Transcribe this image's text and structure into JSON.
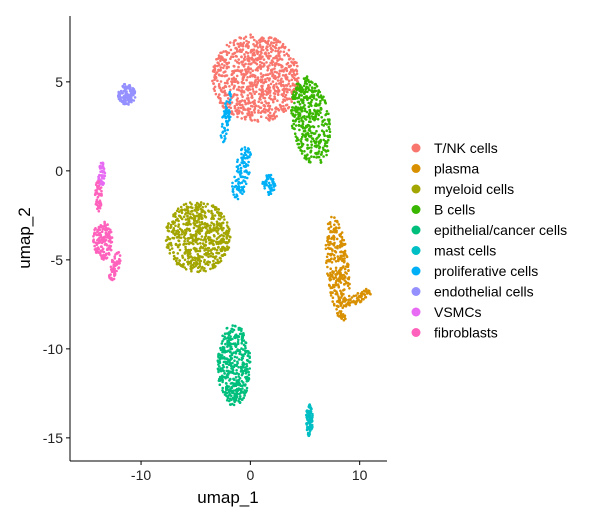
{
  "chart_data": {
    "type": "scatter",
    "title": "",
    "xlabel": "umap_1",
    "ylabel": "umap_2",
    "xlim": [
      -16.5,
      12.5
    ],
    "ylim": [
      -16.3,
      8.7
    ],
    "x_ticks": [
      {
        "value": -10,
        "label": "-10"
      },
      {
        "value": 0,
        "label": "0"
      },
      {
        "value": 10,
        "label": "10"
      }
    ],
    "y_ticks": [
      {
        "value": 5,
        "label": "5"
      },
      {
        "value": 0,
        "label": "0"
      },
      {
        "value": -5,
        "label": "-5"
      },
      {
        "value": -10,
        "label": "-10"
      },
      {
        "value": -15,
        "label": "-15"
      }
    ],
    "grid": false,
    "legend_position": "right",
    "series": [
      {
        "name": "T/NK cells",
        "color": "#F8766D",
        "clusters": [
          {
            "cx": 0.5,
            "cy": 5.2,
            "rx": 4.0,
            "ry": 2.5,
            "n": 900
          }
        ]
      },
      {
        "name": "plasma",
        "color": "#D89000",
        "clusters": [
          {
            "cx": 8.0,
            "cy": -5.5,
            "rx": 1.0,
            "ry": 3.0,
            "n": 320,
            "tilt": 10
          },
          {
            "cx": 10.0,
            "cy": -7.1,
            "rx": 1.3,
            "ry": 0.3,
            "n": 60,
            "tilt": 20
          }
        ]
      },
      {
        "name": "myeloid cells",
        "color": "#A3A500",
        "clusters": [
          {
            "cx": -4.8,
            "cy": -3.7,
            "rx": 3.0,
            "ry": 2.0,
            "n": 650
          }
        ]
      },
      {
        "name": "B cells",
        "color": "#39B600",
        "clusters": [
          {
            "cx": 5.5,
            "cy": 2.8,
            "rx": 1.7,
            "ry": 2.6,
            "n": 420,
            "tilt": 20
          }
        ]
      },
      {
        "name": "epithelial/cancer cells",
        "color": "#00BF7D",
        "clusters": [
          {
            "cx": -1.5,
            "cy": -10.9,
            "rx": 1.5,
            "ry": 2.3,
            "n": 420
          }
        ]
      },
      {
        "name": "mast cells",
        "color": "#00BFC4",
        "clusters": [
          {
            "cx": 5.4,
            "cy": -14.0,
            "rx": 0.3,
            "ry": 0.9,
            "n": 90
          }
        ]
      },
      {
        "name": "proliferative cells",
        "color": "#00B0F6",
        "clusters": [
          {
            "cx": -2.2,
            "cy": 3.0,
            "rx": 0.35,
            "ry": 1.5,
            "n": 60,
            "tilt": -15
          },
          {
            "cx": -0.8,
            "cy": -0.1,
            "rx": 0.7,
            "ry": 1.6,
            "n": 110,
            "tilt": -20
          },
          {
            "cx": 1.7,
            "cy": -0.8,
            "rx": 0.6,
            "ry": 0.6,
            "n": 50
          }
        ]
      },
      {
        "name": "endothelial cells",
        "color": "#9590FF",
        "clusters": [
          {
            "cx": -11.3,
            "cy": 4.3,
            "rx": 0.8,
            "ry": 0.6,
            "n": 120
          }
        ]
      },
      {
        "name": "VSMCs",
        "color": "#E76BF3",
        "clusters": [
          {
            "cx": -13.6,
            "cy": -0.2,
            "rx": 0.35,
            "ry": 0.7,
            "n": 50
          }
        ]
      },
      {
        "name": "fibroblasts",
        "color": "#FF62BC",
        "clusters": [
          {
            "cx": -13.5,
            "cy": -3.9,
            "rx": 0.9,
            "ry": 1.1,
            "n": 160
          },
          {
            "cx": -13.9,
            "cy": -1.4,
            "rx": 0.3,
            "ry": 0.9,
            "n": 50
          },
          {
            "cx": -12.4,
            "cy": -5.4,
            "rx": 0.4,
            "ry": 0.9,
            "n": 60,
            "tilt": -25
          }
        ]
      }
    ]
  }
}
